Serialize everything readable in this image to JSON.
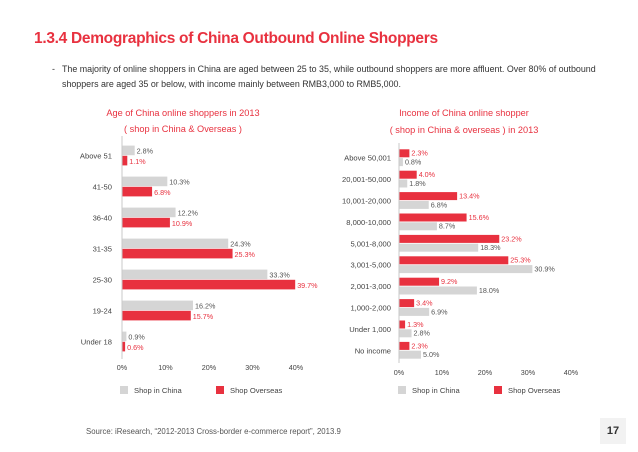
{
  "page": {
    "title": "1.3.4 Demographics of China Outbound Online Shoppers",
    "intro_dash": "-",
    "intro_text": "The majority of online shoppers in China are aged between 25 to 35, while outbound shoppers are more affluent. Over 80% of outbound shoppers are aged 35 or below, with income mainly between RMB3,000 to RMB5,000.",
    "source": "Source: iResearch, “2012-2013 Cross-border e-commerce report”, 2013.9",
    "page_number": "17"
  },
  "colors": {
    "accent": "#e8313f",
    "shop_in_china": "#d5d5d5",
    "shop_overseas": "#e8313f"
  },
  "chart_data": [
    {
      "type": "bar",
      "orientation": "horizontal",
      "title": "Age of China online shoppers in 2013",
      "subtitle": "( shop in China & Overseas )",
      "categories": [
        "Above 51",
        "41-50",
        "36-40",
        "31-35",
        "25-30",
        "19-24",
        "Under 18"
      ],
      "series": [
        {
          "name": "Shop in China",
          "values": [
            2.8,
            10.3,
            12.2,
            24.3,
            33.3,
            16.2,
            0.9
          ],
          "labels": [
            "2.8%",
            "10.3%",
            "12.2%",
            "24.3%",
            "33.3%",
            "16.2%",
            "0.9%"
          ]
        },
        {
          "name": "Shop Overseas",
          "values": [
            1.1,
            6.8,
            10.9,
            25.3,
            39.7,
            15.7,
            0.6
          ],
          "labels": [
            "1.1%",
            "6.8%",
            "10.9%",
            "25.3%",
            "39.7%",
            "15.7%",
            "0.6%"
          ]
        }
      ],
      "x_ticks": [
        "0%",
        "10%",
        "20%",
        "30%",
        "40%"
      ],
      "xlim": [
        0,
        40
      ],
      "grid": false,
      "legend": "bottom"
    },
    {
      "type": "bar",
      "orientation": "horizontal",
      "title": "Income of China online shopper",
      "subtitle": "( shop in China & overseas ) in 2013",
      "categories": [
        "Above 50,001",
        "20,001-50,000",
        "10,001-20,000",
        "8,000-10,000",
        "5,001-8,000",
        "3,001-5,000",
        "2,001-3,000",
        "1,000-2,000",
        "Under 1,000",
        "No income"
      ],
      "series": [
        {
          "name": "Shop Overseas",
          "values": [
            2.3,
            4.0,
            13.4,
            15.6,
            23.2,
            25.3,
            9.2,
            3.4,
            1.3,
            2.3
          ],
          "labels": [
            "2.3%",
            "4.0%",
            "13.4%",
            "15.6%",
            "23.2%",
            "25.3%",
            "9.2%",
            "3.4%",
            "1.3%",
            "2.3%"
          ]
        },
        {
          "name": "Shop in China",
          "values": [
            0.8,
            1.8,
            6.8,
            8.7,
            18.3,
            30.9,
            18.0,
            6.9,
            2.8,
            5.0
          ],
          "labels": [
            "0.8%",
            "1.8%",
            "6.8%",
            "8.7%",
            "18.3%",
            "30.9%",
            "18.0%",
            "6.9%",
            "2.8%",
            "5.0%"
          ]
        }
      ],
      "legend_order": [
        "Shop in China",
        "Shop Overseas"
      ],
      "x_ticks": [
        "0%",
        "10%",
        "20%",
        "30%",
        "40%"
      ],
      "xlim": [
        0,
        40
      ],
      "grid": false,
      "legend": "bottom"
    }
  ]
}
